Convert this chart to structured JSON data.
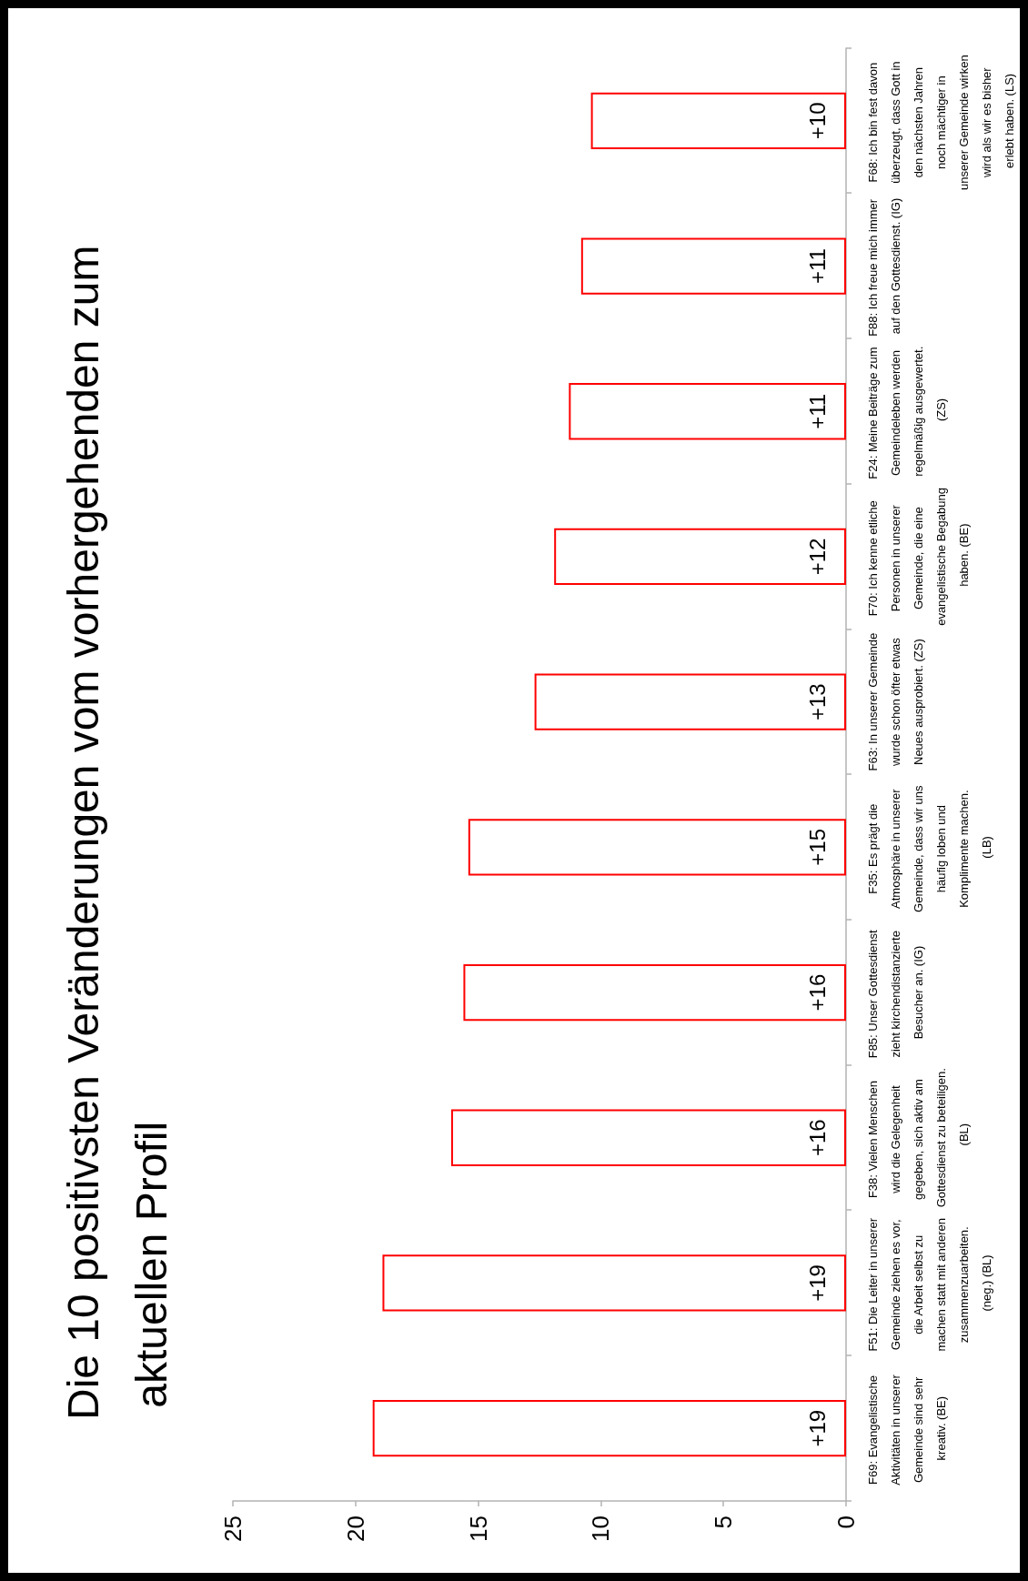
{
  "chart_data": {
    "type": "bar",
    "orientation": "horizontal",
    "title": "Die 10 positivsten Veränderungen vom vorhergehenden zum aktuellen Profil",
    "categories": [
      "F68: Ich bin fest davon überzeugt, dass Gott in den nächsten Jahren noch mächtiger in unserer Gemeinde wirken wird als wir es bisher erlebt haben. (LS)",
      "F88: Ich freue mich immer auf den Gottesdienst. (IG)",
      "F24: Meine Beiträge zum Gemeindeleben werden regelmäßig ausgewertet. (ZS)",
      "F70: Ich kenne etliche Personen in unserer Gemeinde, die eine evangelistische Begabung haben. (BE)",
      "F63: In unserer Gemeinde wurde schon öfter etwas Neues ausprobiert. (ZS)",
      "F35: Es prägt die Atmosphäre in unserer Gemeinde, dass wir uns häufig loben und Komplimente machen. (LB)",
      "F85: Unser Gottesdienst zieht kirchendistanzierte Besucher an. (IG)",
      "F38: Vielen Menschen wird die Gelegenheit gegeben, sich aktiv am Gottesdienst zu beteiligen.  (BL)",
      "F51: Die Leiter in unserer Gemeinde ziehen es vor, die Arbeit selbst zu machen statt mit anderen zusammenzuarbeiten. (neg.) (BL)",
      "F69: Evangelistische Aktivitäten in unserer Gemeinde sind sehr kreativ. (BE)"
    ],
    "values": [
      10.4,
      10.8,
      11.3,
      11.9,
      12.7,
      15.4,
      15.6,
      16.1,
      18.9,
      19.3
    ],
    "value_labels": [
      "+10",
      "+11",
      "+11",
      "+12",
      "+13",
      "+15",
      "+16",
      "+16",
      "+19",
      "+19"
    ],
    "color": "#ff0000",
    "xlim": [
      25,
      0
    ],
    "xticks": [
      0,
      5,
      10,
      15,
      20,
      25
    ]
  }
}
